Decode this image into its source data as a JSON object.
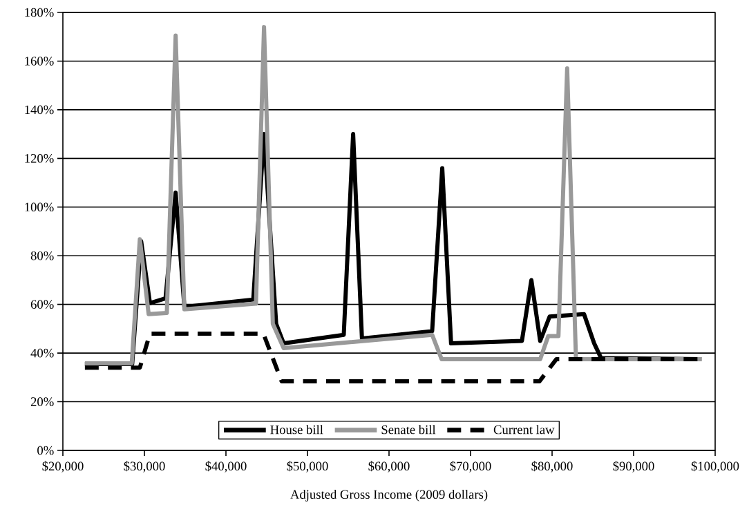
{
  "chart_data": {
    "type": "line",
    "xlabel": "Adjusted Gross Income (2009 dollars)",
    "xlim": [
      20000,
      100000
    ],
    "xticks": [
      {
        "value": 20000,
        "label": "$20,000"
      },
      {
        "value": 30000,
        "label": "$30,000"
      },
      {
        "value": 40000,
        "label": "$40,000"
      },
      {
        "value": 50000,
        "label": "$50,000"
      },
      {
        "value": 60000,
        "label": "$60,000"
      },
      {
        "value": 70000,
        "label": "$70,000"
      },
      {
        "value": 80000,
        "label": "$80,000"
      },
      {
        "value": 90000,
        "label": "$90,000"
      },
      {
        "value": 100000,
        "label": "$100,000"
      }
    ],
    "ylim": [
      0,
      180
    ],
    "yticks": [
      {
        "value": 0,
        "label": "0%"
      },
      {
        "value": 20,
        "label": "20%"
      },
      {
        "value": 40,
        "label": "40%"
      },
      {
        "value": 60,
        "label": "60%"
      },
      {
        "value": 80,
        "label": "80%"
      },
      {
        "value": 100,
        "label": "100%"
      },
      {
        "value": 120,
        "label": "120%"
      },
      {
        "value": 140,
        "label": "140%"
      },
      {
        "value": 160,
        "label": "160%"
      },
      {
        "value": 180,
        "label": "180%"
      }
    ],
    "grid": "y",
    "legend": "bottom",
    "marker": "none",
    "series": [
      {
        "name": "House bill",
        "color": "#000000",
        "line_style": "solid",
        "x": [
          22700,
          28500,
          29600,
          30680,
          32590,
          33830,
          34900,
          43350,
          44670,
          46160,
          47080,
          54450,
          55600,
          56680,
          65290,
          66530,
          67610,
          76300,
          77460,
          78540,
          79700,
          83920,
          85160,
          86000,
          98330
        ],
        "values": [
          35.5,
          35.5,
          86,
          60.5,
          62.5,
          106,
          59,
          62,
          130,
          52,
          44,
          47.5,
          130,
          46,
          49,
          116,
          44,
          45,
          70,
          45,
          55,
          56,
          44,
          38,
          37.5
        ]
      },
      {
        "name": "Senate bill",
        "color": "#999999",
        "line_style": "solid",
        "x": [
          22700,
          28450,
          29440,
          30520,
          32750,
          33830,
          34900,
          43680,
          44670,
          45750,
          47080,
          65290,
          66450,
          78540,
          79530,
          80780,
          81850,
          82930,
          98330
        ],
        "values": [
          35.8,
          35.8,
          86.8,
          56,
          56.5,
          170.5,
          58,
          60.3,
          174,
          52,
          42,
          47.5,
          37.5,
          37.5,
          47,
          47,
          157,
          37.5,
          37.5
        ]
      },
      {
        "name": "Current law",
        "color": "#000000",
        "line_style": "dashed",
        "x": [
          22700,
          29440,
          30680,
          44590,
          46830,
          78460,
          80530,
          98330
        ],
        "values": [
          34,
          34,
          48,
          48,
          28.4,
          28.4,
          37.5,
          37.5
        ]
      }
    ]
  }
}
